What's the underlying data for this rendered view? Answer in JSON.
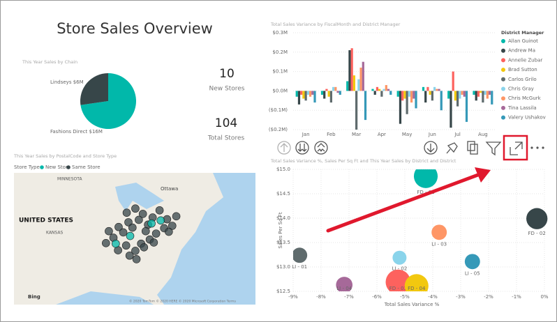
{
  "header": {
    "title": "Store Sales Overview"
  },
  "cards": [
    {
      "value": 10,
      "label": "New Stores"
    },
    {
      "value": 104,
      "label": "Total Stores"
    }
  ],
  "chart_data": [
    {
      "type": "pie",
      "title": "This Year Sales by Chain",
      "categories": [
        "Fashions Direct",
        "Lindseys"
      ],
      "values": [
        16,
        6
      ],
      "value_labels": [
        "$16M",
        "$6M"
      ],
      "colors": [
        "#01b8aa",
        "#374649"
      ]
    },
    {
      "type": "bar",
      "title": "Total Sales Variance by FiscalMonth and District Manager",
      "legend_title": "District Manager",
      "legend": "right",
      "categories": [
        "Jan",
        "Feb",
        "Mar",
        "Apr",
        "May",
        "Jun",
        "Jul",
        "Aug"
      ],
      "series": [
        {
          "name": "Allan Guinot",
          "color": "#01b8aa",
          "values": [
            -0.03,
            -0.02,
            0.05,
            0.01,
            -0.03,
            0.02,
            -0.04,
            -0.02
          ]
        },
        {
          "name": "Andrew Ma",
          "color": "#374649",
          "values": [
            -0.07,
            -0.04,
            0.21,
            -0.02,
            -0.17,
            -0.06,
            -0.19,
            -0.05
          ]
        },
        {
          "name": "Annelie Zubar",
          "color": "#fd625e",
          "values": [
            -0.02,
            0.01,
            0.22,
            0.02,
            -0.05,
            0.02,
            0.1,
            -0.03
          ]
        },
        {
          "name": "Brad Sutton",
          "color": "#f2c80f",
          "values": [
            -0.04,
            -0.03,
            0.08,
            0.01,
            -0.04,
            -0.02,
            -0.05,
            -0.01
          ]
        },
        {
          "name": "Carlos Grilo",
          "color": "#5f6b6d",
          "values": [
            -0.05,
            -0.06,
            -0.2,
            -0.03,
            -0.12,
            -0.05,
            -0.08,
            -0.06
          ]
        },
        {
          "name": "Chris Gray",
          "color": "#8ad4eb",
          "values": [
            -0.02,
            0.02,
            0.06,
            0.01,
            -0.03,
            0.02,
            -0.04,
            -0.02
          ]
        },
        {
          "name": "Chris McGurk",
          "color": "#fe9666",
          "values": [
            -0.03,
            0.02,
            0.12,
            0.03,
            -0.06,
            0.01,
            -0.02,
            -0.04
          ]
        },
        {
          "name": "Tina Lassila",
          "color": "#a66999",
          "values": [
            -0.02,
            -0.01,
            0.15,
            0.01,
            -0.04,
            0.01,
            -0.03,
            -0.02
          ]
        },
        {
          "name": "Valery Ushakov",
          "color": "#3599b8",
          "values": [
            -0.06,
            -0.02,
            -0.15,
            -0.02,
            -0.09,
            -0.1,
            -0.16,
            -0.07
          ]
        }
      ],
      "ylim": [
        -0.2,
        0.3
      ],
      "yticks": [
        {
          "value": -0.2,
          "label": "($0.2M)"
        },
        {
          "value": -0.1,
          "label": "($0.1M)"
        },
        {
          "value": 0,
          "label": "$0.0M"
        },
        {
          "value": 0.1,
          "label": "$0.1M"
        },
        {
          "value": 0.2,
          "label": "$0.2M"
        },
        {
          "value": 0.3,
          "label": "$0.3M"
        }
      ],
      "grid": true
    },
    {
      "type": "map",
      "title": "This Year Sales by PostalCode and Store Type",
      "legend_title": "Store Type",
      "labels": [
        "MINNESOTA",
        "Ottawa",
        "UNITED STATES",
        "KANSAS",
        "Bing",
        "© 2020 TomTom © 2020 HERE © 2020 Microsoft Corporation Terms"
      ],
      "series": [
        {
          "name": "New Store",
          "color": "#01b8aa",
          "x": [
            -80.2,
            -83.9,
            -86.4,
            -78.6
          ],
          "y": [
            39.6,
            37.5,
            36.2,
            40.1
          ]
        },
        {
          "name": "Same Store",
          "color": "#374649",
          "x": [
            -84.5,
            -83.0,
            -81.7,
            -80.0,
            -78.8,
            -77.5,
            -76.6,
            -75.9,
            -80.8,
            -82.4,
            -84.2,
            -85.9,
            -87.6,
            -86.8,
            -85.1,
            -83.5,
            -81.2,
            -79.4,
            -78.0,
            -80.5,
            -82.0,
            -84.6,
            -86.0,
            -83.0,
            -81.5,
            -79.8,
            -77.2,
            -88.1,
            -84.0,
            -82.8
          ],
          "y": [
            41.4,
            42.1,
            41.2,
            40.6,
            41.8,
            40.3,
            39.2,
            40.8,
            39.4,
            40.2,
            39.8,
            39.0,
            38.3,
            37.2,
            38.1,
            38.9,
            38.3,
            37.9,
            38.8,
            36.9,
            36.2,
            35.9,
            35.1,
            35.0,
            35.6,
            36.4,
            38.2,
            36.3,
            34.2,
            33.6
          ]
        }
      ]
    },
    {
      "type": "scatter",
      "title": "Total Sales Variance %, Sales Per Sq Ft and This Year Sales by District and District",
      "x_label": "Total Sales Variance %",
      "y_label": "Sales Per Sq Ft",
      "categories": [
        "FD - 01",
        "FD - 02",
        "LI - 03",
        "LI - 01",
        "LI - 02",
        "LI - 05",
        "FD - 03",
        "FD - 04",
        "LI - 04"
      ],
      "x": [
        -4.25,
        -0.27,
        -3.77,
        -8.77,
        -5.19,
        -2.58,
        -5.24,
        -4.58,
        -7.17
      ],
      "values": [
        14.86,
        13.99,
        13.71,
        13.24,
        13.19,
        13.11,
        12.69,
        12.61,
        12.63
      ],
      "sizes": [
        2.9,
        2.3,
        1.2,
        1.2,
        1.0,
        1.2,
        3.2,
        2.9,
        1.4
      ],
      "colors": [
        "#01b8aa",
        "#374649",
        "#fe9666",
        "#5f6b6d",
        "#8ad4eb",
        "#3599b8",
        "#fd625e",
        "#f2c80f",
        "#a66999"
      ],
      "xlim": [
        -9,
        0
      ],
      "xticks": [
        {
          "value": -9,
          "label": "-9%"
        },
        {
          "value": -8,
          "label": "-8%"
        },
        {
          "value": -7,
          "label": "-7%"
        },
        {
          "value": -6,
          "label": "-6%"
        },
        {
          "value": -5,
          "label": "-5%"
        },
        {
          "value": -4,
          "label": "-4%"
        },
        {
          "value": -3,
          "label": "-3%"
        },
        {
          "value": -2,
          "label": "-2%"
        },
        {
          "value": -1,
          "label": "-1%"
        },
        {
          "value": 0,
          "label": "0%"
        }
      ],
      "ylim": [
        12.5,
        15
      ],
      "yticks": [
        {
          "value": 12.5,
          "label": "$12.5"
        },
        {
          "value": 13,
          "label": "$13.0"
        },
        {
          "value": 13.5,
          "label": "$13.5"
        },
        {
          "value": 14,
          "label": "$14.0"
        },
        {
          "value": 14.5,
          "label": "$14.5"
        },
        {
          "value": 15,
          "label": "$15.0"
        }
      ],
      "grid": true
    }
  ]
}
